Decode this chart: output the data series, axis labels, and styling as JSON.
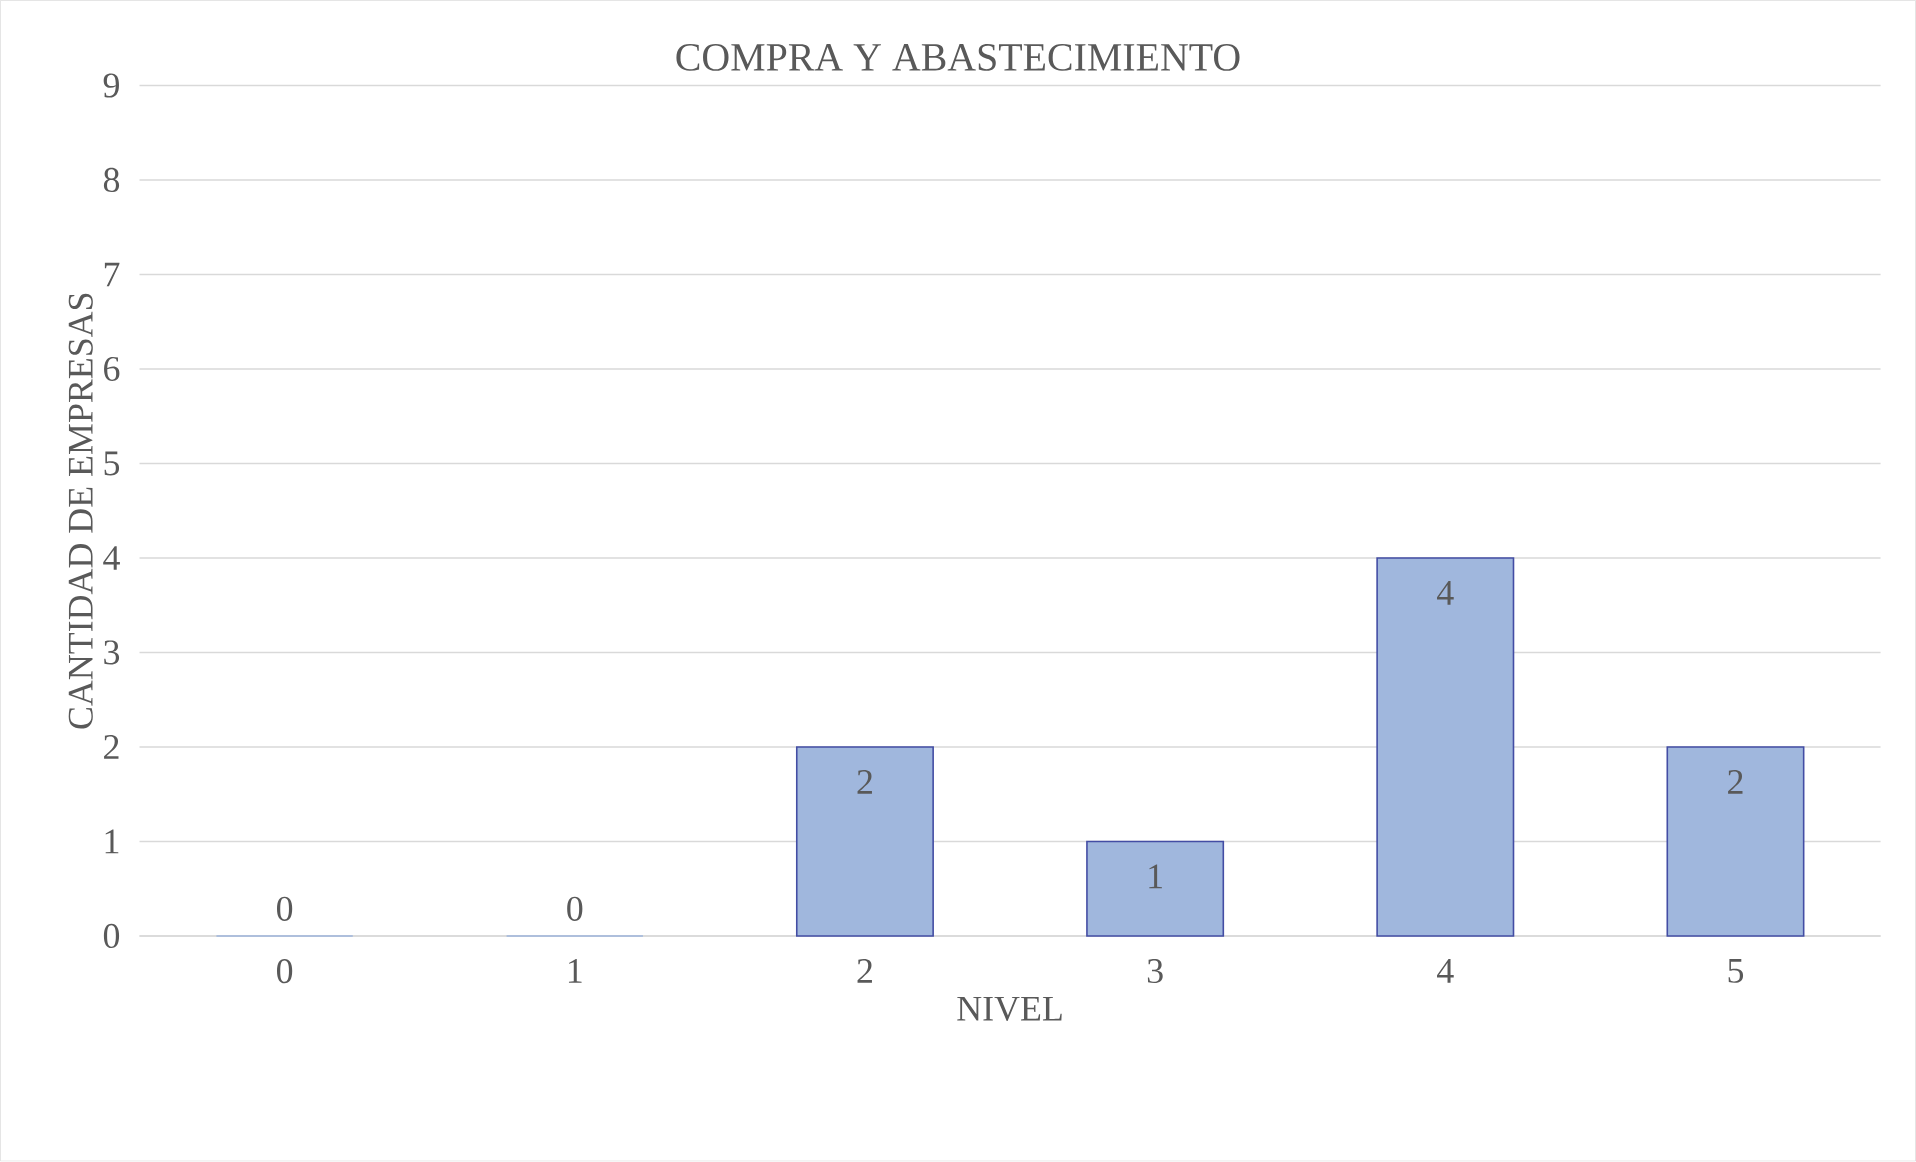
{
  "chart_data": {
    "type": "bar",
    "title": "COMPRA Y ABASTECIMIENTO",
    "xlabel": "NIVEL",
    "ylabel": "CANTIDAD DE EMPRESAS",
    "categories": [
      "0",
      "1",
      "2",
      "3",
      "4",
      "5"
    ],
    "values": [
      0,
      0,
      2,
      1,
      4,
      2
    ],
    "color": "#a0b7dd",
    "ylim": [
      0,
      9
    ],
    "yticks": [
      0,
      1,
      2,
      3,
      4,
      5,
      6,
      7,
      8,
      9
    ],
    "grid": "y",
    "data_labels": true
  }
}
